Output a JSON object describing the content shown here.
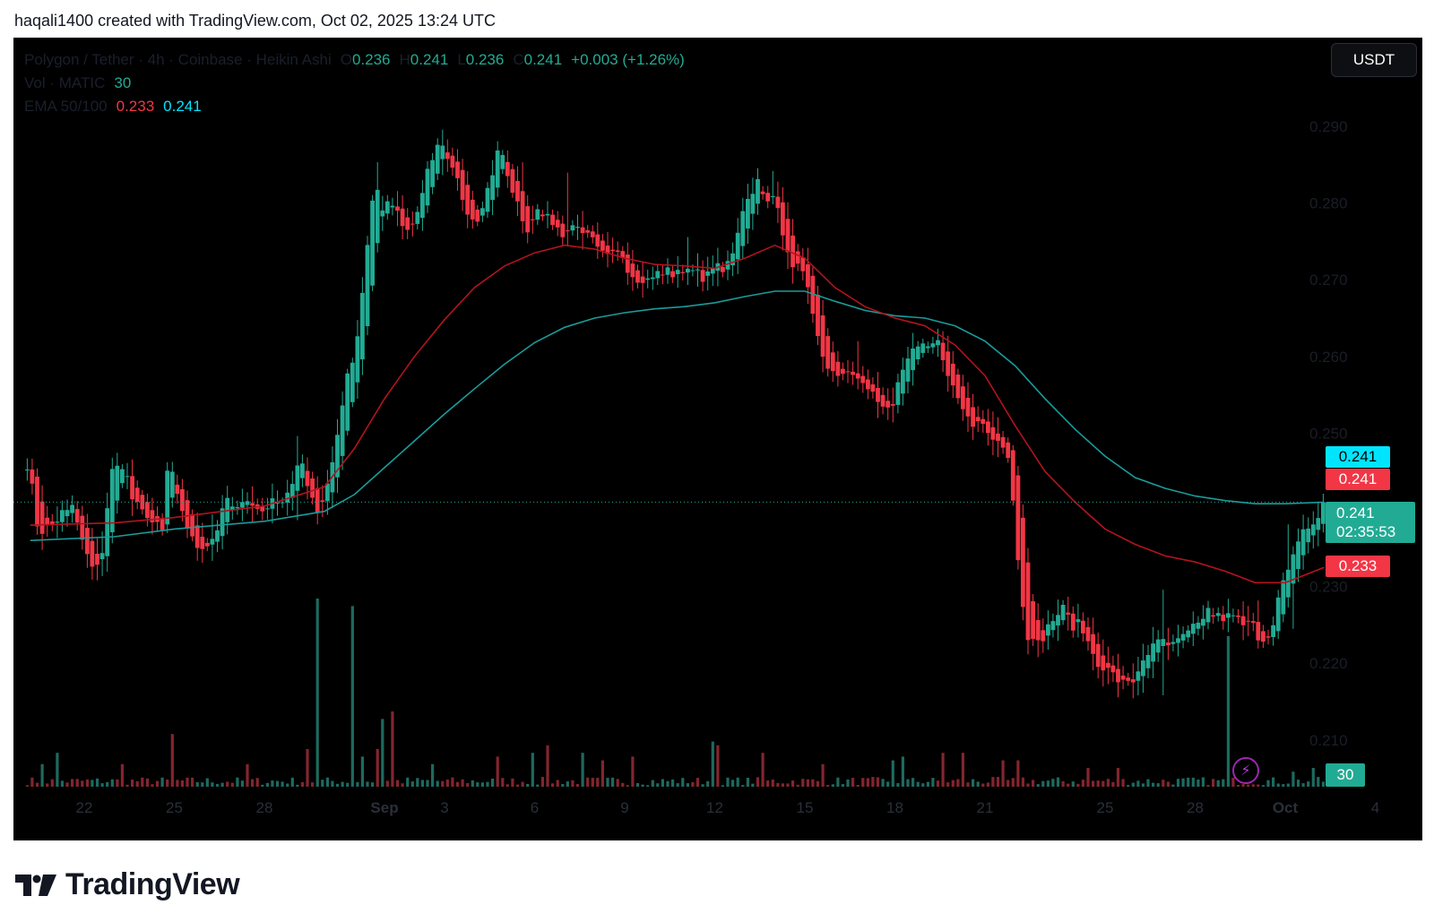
{
  "caption": "haqali1400 created with TradingView.com, Oct 02, 2025 13:24 UTC",
  "legend": {
    "symbol": "Polygon / Tether · 4h · Coinbase · Heikin Ashi",
    "o_label": "O",
    "o_value": "0.236",
    "h_label": "H",
    "h_value": "0.241",
    "l_label": "L",
    "l_value": "0.236",
    "c_label": "C",
    "c_value": "0.241",
    "change": "+0.003 (+1.26%)",
    "vol_label": "Vol · MATIC",
    "vol_value": "30",
    "ema_label": "EMA 50/100",
    "ema50_value": "0.233",
    "ema100_value": "0.241"
  },
  "currency_button": "USDT",
  "price_tags": {
    "ema100": "0.241",
    "ema50_top": "0.241",
    "current_price": "0.241",
    "countdown": "02:35:53",
    "ema50": "0.233",
    "volume": "30"
  },
  "brand": "TradingView",
  "colors": {
    "up": "#22ab94",
    "down": "#f23645",
    "ema50": "#b2141e",
    "ema100": "#1b9b9b",
    "background": "#000000"
  },
  "chart_data": {
    "type": "candlestick",
    "style": "Heikin Ashi",
    "timeframe": "4h",
    "ylim": [
      0.205,
      0.295
    ],
    "y_ticks": [
      "0.290",
      "0.280",
      "0.270",
      "0.260",
      "0.250",
      "0.230",
      "0.220",
      "0.210"
    ],
    "y_tick_values": [
      0.29,
      0.28,
      0.27,
      0.26,
      0.25,
      0.23,
      0.22,
      0.21
    ],
    "x_ticks": [
      "22",
      "25",
      "28",
      "Sep",
      "3",
      "6",
      "9",
      "12",
      "15",
      "18",
      "21",
      "25",
      "28",
      "Oct",
      "4"
    ],
    "x_tick_days": [
      0,
      3,
      6,
      10,
      12,
      15,
      18,
      21,
      24,
      27,
      30,
      34,
      37,
      40,
      43
    ],
    "start_date": "Aug 21",
    "last_day": 41.3,
    "price_anchors": [
      [
        -1.8,
        0.245
      ],
      [
        -1.5,
        0.236
      ],
      [
        -1.2,
        0.239
      ],
      [
        -0.9,
        0.238
      ],
      [
        -0.5,
        0.241
      ],
      [
        0.0,
        0.236
      ],
      [
        0.3,
        0.232
      ],
      [
        0.6,
        0.235
      ],
      [
        0.9,
        0.245
      ],
      [
        1.2,
        0.246
      ],
      [
        1.6,
        0.242
      ],
      [
        2.0,
        0.24
      ],
      [
        2.3,
        0.239
      ],
      [
        2.6,
        0.238
      ],
      [
        2.8,
        0.247
      ],
      [
        3.0,
        0.243
      ],
      [
        3.3,
        0.239
      ],
      [
        3.6,
        0.236
      ],
      [
        3.8,
        0.234
      ],
      [
        4.1,
        0.235
      ],
      [
        4.4,
        0.237
      ],
      [
        4.7,
        0.242
      ],
      [
        5.0,
        0.24
      ],
      [
        5.4,
        0.241
      ],
      [
        5.7,
        0.24
      ],
      [
        6.0,
        0.239
      ],
      [
        6.3,
        0.241
      ],
      [
        6.6,
        0.241
      ],
      [
        6.9,
        0.242
      ],
      [
        7.2,
        0.248
      ],
      [
        7.5,
        0.242
      ],
      [
        7.8,
        0.239
      ],
      [
        8.2,
        0.244
      ],
      [
        8.5,
        0.252
      ],
      [
        8.8,
        0.258
      ],
      [
        9.1,
        0.262
      ],
      [
        9.3,
        0.269
      ],
      [
        9.5,
        0.277
      ],
      [
        9.7,
        0.283
      ],
      [
        9.9,
        0.279
      ],
      [
        10.2,
        0.28
      ],
      [
        10.5,
        0.278
      ],
      [
        10.8,
        0.276
      ],
      [
        11.1,
        0.279
      ],
      [
        11.4,
        0.284
      ],
      [
        11.7,
        0.287
      ],
      [
        12.0,
        0.287
      ],
      [
        12.3,
        0.284
      ],
      [
        12.6,
        0.281
      ],
      [
        12.9,
        0.277
      ],
      [
        13.2,
        0.279
      ],
      [
        13.5,
        0.283
      ],
      [
        13.8,
        0.287
      ],
      [
        14.1,
        0.284
      ],
      [
        14.4,
        0.28
      ],
      [
        14.7,
        0.276
      ],
      [
        15.0,
        0.279
      ],
      [
        15.3,
        0.279
      ],
      [
        15.6,
        0.277
      ],
      [
        15.9,
        0.276
      ],
      [
        16.2,
        0.277
      ],
      [
        16.5,
        0.276
      ],
      [
        16.8,
        0.276
      ],
      [
        17.1,
        0.274
      ],
      [
        17.4,
        0.273
      ],
      [
        17.7,
        0.275
      ],
      [
        18.0,
        0.272
      ],
      [
        18.3,
        0.27
      ],
      [
        18.6,
        0.27
      ],
      [
        18.9,
        0.27
      ],
      [
        19.2,
        0.271
      ],
      [
        19.5,
        0.271
      ],
      [
        19.8,
        0.271
      ],
      [
        20.1,
        0.271
      ],
      [
        20.4,
        0.271
      ],
      [
        20.7,
        0.27
      ],
      [
        21.0,
        0.272
      ],
      [
        21.3,
        0.271
      ],
      [
        21.6,
        0.273
      ],
      [
        21.9,
        0.278
      ],
      [
        22.2,
        0.281
      ],
      [
        22.4,
        0.283
      ],
      [
        22.7,
        0.281
      ],
      [
        23.0,
        0.28
      ],
      [
        23.3,
        0.276
      ],
      [
        23.6,
        0.272
      ],
      [
        23.9,
        0.271
      ],
      [
        24.2,
        0.267
      ],
      [
        24.5,
        0.262
      ],
      [
        24.8,
        0.258
      ],
      [
        25.1,
        0.258
      ],
      [
        25.4,
        0.258
      ],
      [
        25.7,
        0.258
      ],
      [
        26.0,
        0.257
      ],
      [
        26.3,
        0.255
      ],
      [
        26.6,
        0.253
      ],
      [
        26.9,
        0.253
      ],
      [
        27.2,
        0.258
      ],
      [
        27.5,
        0.26
      ],
      [
        27.8,
        0.261
      ],
      [
        28.1,
        0.261
      ],
      [
        28.4,
        0.262
      ],
      [
        28.7,
        0.259
      ],
      [
        29.0,
        0.255
      ],
      [
        29.3,
        0.253
      ],
      [
        29.6,
        0.251
      ],
      [
        29.9,
        0.252
      ],
      [
        30.2,
        0.25
      ],
      [
        30.5,
        0.249
      ],
      [
        30.8,
        0.247
      ],
      [
        31.0,
        0.238
      ],
      [
        31.2,
        0.23
      ],
      [
        31.4,
        0.224
      ],
      [
        31.7,
        0.222
      ],
      [
        32.0,
        0.224
      ],
      [
        32.3,
        0.226
      ],
      [
        32.6,
        0.227
      ],
      [
        32.9,
        0.225
      ],
      [
        33.2,
        0.225
      ],
      [
        33.5,
        0.222
      ],
      [
        33.8,
        0.22
      ],
      [
        34.1,
        0.219
      ],
      [
        34.4,
        0.218
      ],
      [
        34.7,
        0.217
      ],
      [
        35.0,
        0.218
      ],
      [
        35.3,
        0.221
      ],
      [
        35.6,
        0.222
      ],
      [
        35.9,
        0.223
      ],
      [
        36.2,
        0.222
      ],
      [
        36.5,
        0.223
      ],
      [
        36.8,
        0.224
      ],
      [
        37.1,
        0.225
      ],
      [
        37.4,
        0.227
      ],
      [
        37.7,
        0.226
      ],
      [
        38.0,
        0.226
      ],
      [
        38.3,
        0.226
      ],
      [
        38.6,
        0.225
      ],
      [
        38.9,
        0.225
      ],
      [
        39.2,
        0.223
      ],
      [
        39.5,
        0.224
      ],
      [
        39.8,
        0.229
      ],
      [
        40.1,
        0.232
      ],
      [
        40.4,
        0.235
      ],
      [
        40.7,
        0.238
      ],
      [
        41.0,
        0.238
      ],
      [
        41.3,
        0.241
      ]
    ],
    "ema50": [
      [
        -1.8,
        0.238
      ],
      [
        1.0,
        0.2383
      ],
      [
        3.0,
        0.239
      ],
      [
        6.0,
        0.2405
      ],
      [
        8.0,
        0.243
      ],
      [
        9.0,
        0.248
      ],
      [
        10.0,
        0.2545
      ],
      [
        11.0,
        0.26
      ],
      [
        12.0,
        0.2648
      ],
      [
        13.0,
        0.269
      ],
      [
        14.0,
        0.2718
      ],
      [
        15.0,
        0.2735
      ],
      [
        16.0,
        0.2745
      ],
      [
        17.0,
        0.274
      ],
      [
        18.0,
        0.2728
      ],
      [
        19.0,
        0.272
      ],
      [
        20.0,
        0.2718
      ],
      [
        21.0,
        0.2715
      ],
      [
        22.0,
        0.2728
      ],
      [
        23.0,
        0.2745
      ],
      [
        24.0,
        0.2728
      ],
      [
        25.0,
        0.269
      ],
      [
        26.0,
        0.2665
      ],
      [
        27.0,
        0.265
      ],
      [
        28.0,
        0.264
      ],
      [
        29.0,
        0.2615
      ],
      [
        30.0,
        0.2575
      ],
      [
        31.0,
        0.251
      ],
      [
        32.0,
        0.245
      ],
      [
        33.0,
        0.241
      ],
      [
        34.0,
        0.2375
      ],
      [
        35.0,
        0.2355
      ],
      [
        36.0,
        0.234
      ],
      [
        37.0,
        0.2332
      ],
      [
        38.0,
        0.232
      ],
      [
        39.0,
        0.2305
      ],
      [
        40.0,
        0.2305
      ],
      [
        41.3,
        0.2325
      ]
    ],
    "ema100": [
      [
        -1.8,
        0.236
      ],
      [
        1.0,
        0.2365
      ],
      [
        3.0,
        0.2375
      ],
      [
        6.0,
        0.2385
      ],
      [
        8.0,
        0.2398
      ],
      [
        9.0,
        0.242
      ],
      [
        10.0,
        0.2455
      ],
      [
        11.0,
        0.249
      ],
      [
        12.0,
        0.2525
      ],
      [
        13.0,
        0.2558
      ],
      [
        14.0,
        0.259
      ],
      [
        15.0,
        0.2618
      ],
      [
        16.0,
        0.2638
      ],
      [
        17.0,
        0.265
      ],
      [
        18.0,
        0.2657
      ],
      [
        19.0,
        0.2662
      ],
      [
        20.0,
        0.2665
      ],
      [
        21.0,
        0.267
      ],
      [
        22.0,
        0.2678
      ],
      [
        23.0,
        0.2685
      ],
      [
        24.0,
        0.2685
      ],
      [
        25.0,
        0.2672
      ],
      [
        26.0,
        0.266
      ],
      [
        27.0,
        0.2653
      ],
      [
        28.0,
        0.265
      ],
      [
        29.0,
        0.264
      ],
      [
        30.0,
        0.262
      ],
      [
        31.0,
        0.2588
      ],
      [
        32.0,
        0.2545
      ],
      [
        33.0,
        0.2505
      ],
      [
        34.0,
        0.247
      ],
      [
        35.0,
        0.2442
      ],
      [
        36.0,
        0.2428
      ],
      [
        37.0,
        0.2418
      ],
      [
        38.0,
        0.2412
      ],
      [
        39.0,
        0.2408
      ],
      [
        40.0,
        0.2408
      ],
      [
        41.3,
        0.241
      ]
    ],
    "volume_spikes": [
      [
        -1.3,
        6
      ],
      [
        -0.9,
        9
      ],
      [
        1.3,
        6
      ],
      [
        3.0,
        14
      ],
      [
        5.5,
        6
      ],
      [
        7.5,
        10
      ],
      [
        7.9,
        50
      ],
      [
        9.0,
        48
      ],
      [
        9.4,
        8
      ],
      [
        9.8,
        10
      ],
      [
        10.0,
        18
      ],
      [
        10.3,
        20
      ],
      [
        11.6,
        6
      ],
      [
        13.8,
        8
      ],
      [
        15.0,
        9
      ],
      [
        15.5,
        11
      ],
      [
        16.6,
        9
      ],
      [
        17.3,
        7
      ],
      [
        18.4,
        8
      ],
      [
        21.0,
        12
      ],
      [
        21.2,
        11
      ],
      [
        22.6,
        9
      ],
      [
        24.6,
        6
      ],
      [
        27.0,
        7
      ],
      [
        27.3,
        8
      ],
      [
        28.6,
        9
      ],
      [
        29.4,
        9
      ],
      [
        30.7,
        7
      ],
      [
        31.2,
        7
      ],
      [
        33.5,
        5
      ],
      [
        34.5,
        5
      ],
      [
        38.2,
        40
      ],
      [
        40.4,
        4
      ],
      [
        41.0,
        5
      ]
    ]
  }
}
